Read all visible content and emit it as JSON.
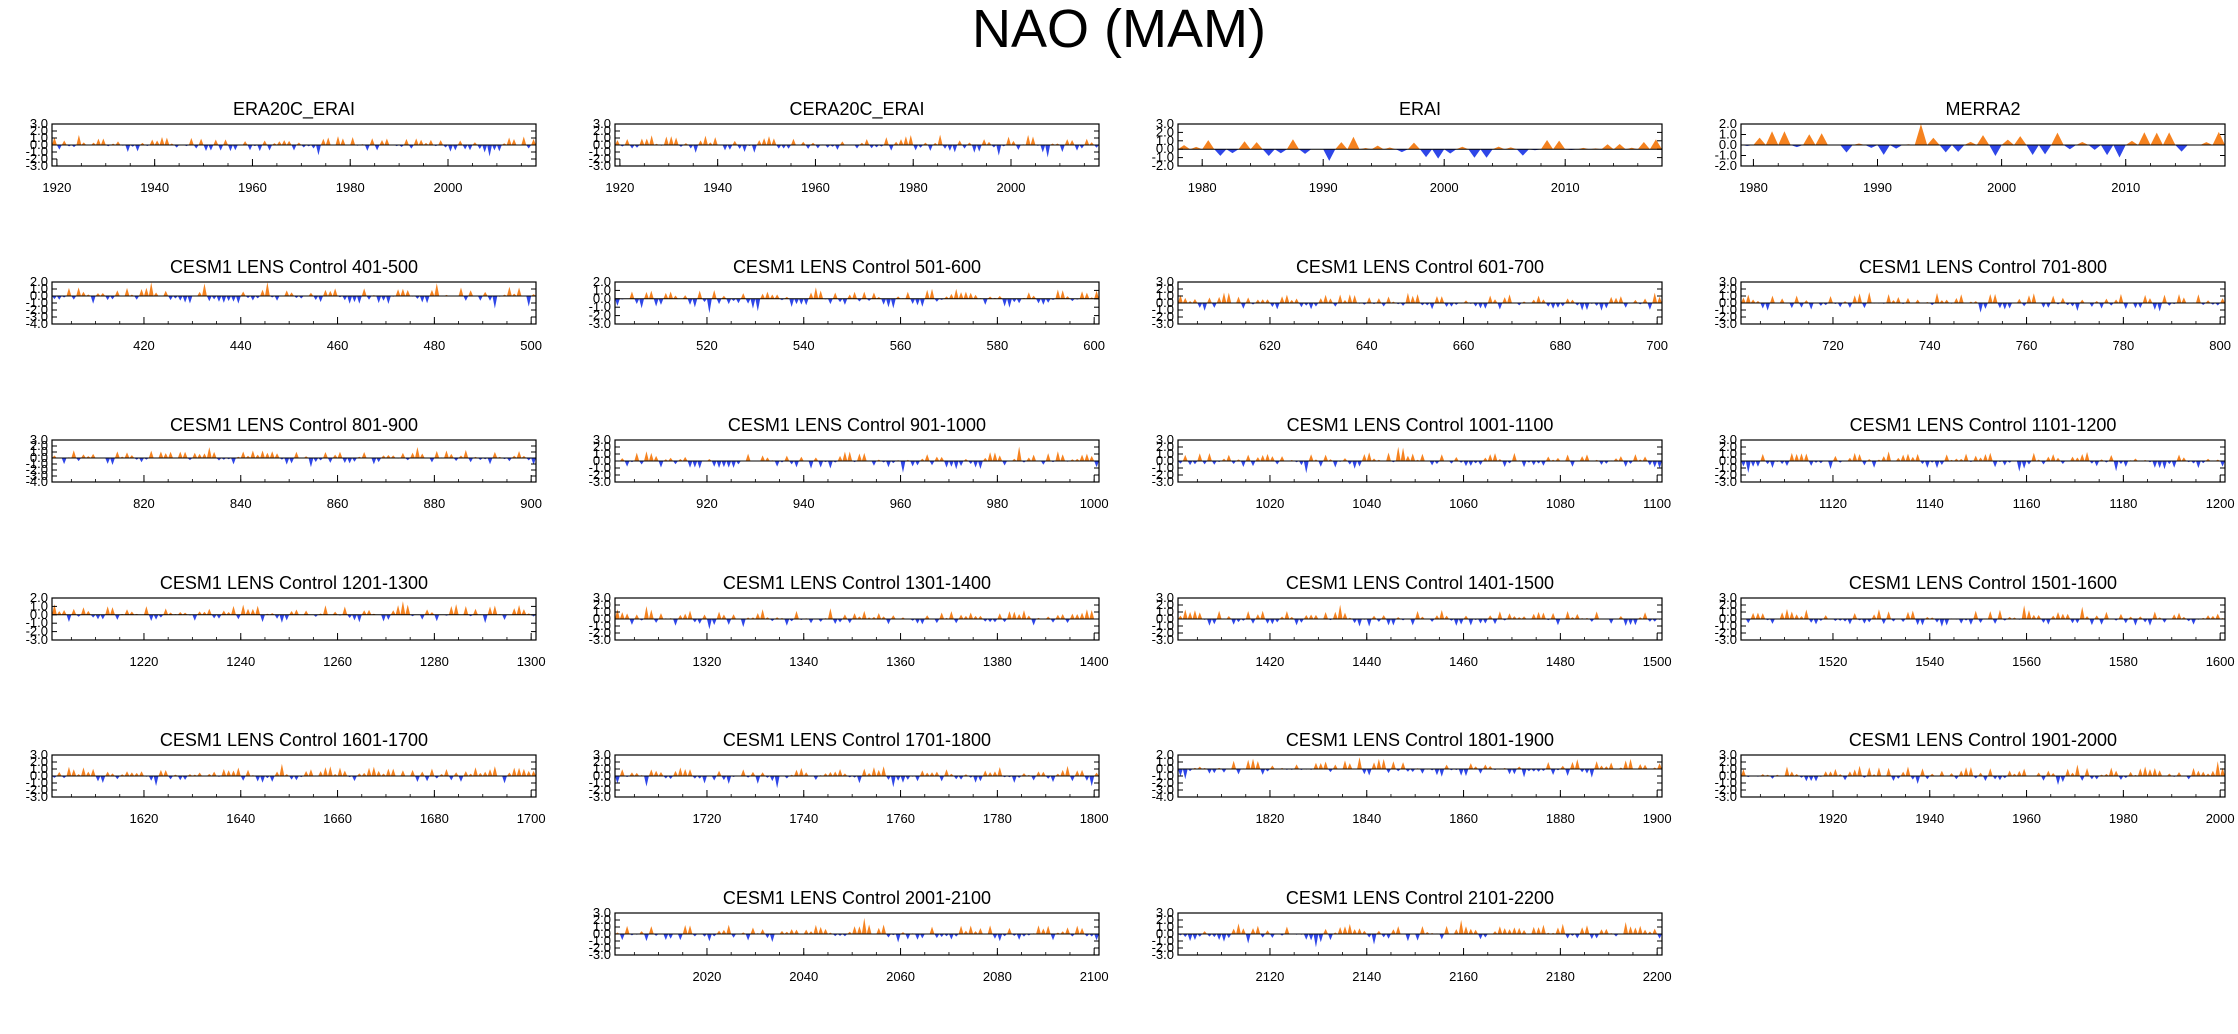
{
  "title": "NAO (MAM)",
  "colors": {
    "positive": "#f5821f",
    "negative": "#2e46e8",
    "frame": "#000000"
  },
  "chart_data": [
    {
      "type": "area",
      "title": "ERA20C_ERAI",
      "xlim": [
        1919,
        2018
      ],
      "ylim": [
        -3,
        3
      ],
      "yticks": [
        "3.0",
        "2.0",
        "1.0",
        "0.0",
        "-1.0",
        "-2.0",
        "-3.0"
      ],
      "xticks": [
        1920,
        1940,
        1960,
        1980,
        2000
      ],
      "seed": 11
    },
    {
      "type": "area",
      "title": "CERA20C_ERAI",
      "xlim": [
        1919,
        2018
      ],
      "ylim": [
        -3,
        3
      ],
      "yticks": [
        "3.0",
        "2.0",
        "1.0",
        "0.0",
        "-1.0",
        "-2.0",
        "-3.0"
      ],
      "xticks": [
        1920,
        1940,
        1960,
        1980,
        2000
      ],
      "seed": 12
    },
    {
      "type": "area",
      "title": "ERAI",
      "xlim": [
        1978,
        2018
      ],
      "ylim": [
        -2,
        3
      ],
      "yticks": [
        "3.0",
        "2.0",
        "1.0",
        "0.0",
        "-1.0",
        "-2.0"
      ],
      "xticks": [
        1980,
        1990,
        2000,
        2010
      ],
      "seed": 13
    },
    {
      "type": "area",
      "title": "MERRA2",
      "xlim": [
        1979,
        2018
      ],
      "ylim": [
        -2,
        2
      ],
      "yticks": [
        "2.0",
        "1.0",
        "0.0",
        "-1.0",
        "-2.0"
      ],
      "xticks": [
        1980,
        1990,
        2000,
        2010
      ],
      "seed": 14
    },
    {
      "type": "area",
      "title": "CESM1 LENS Control 401-500",
      "xlim": [
        401,
        501
      ],
      "ylim": [
        -4,
        2
      ],
      "yticks": [
        "2.0",
        "1.0",
        "0.0",
        "-1.0",
        "-2.0",
        "-3.0",
        "-4.0"
      ],
      "xticks": [
        420,
        440,
        460,
        480,
        500
      ],
      "seed": 21
    },
    {
      "type": "area",
      "title": "CESM1 LENS Control 501-600",
      "xlim": [
        501,
        601
      ],
      "ylim": [
        -3,
        2
      ],
      "yticks": [
        "2.0",
        "1.0",
        "0.0",
        "-1.0",
        "-2.0",
        "-3.0"
      ],
      "xticks": [
        520,
        540,
        560,
        580,
        600
      ],
      "seed": 22
    },
    {
      "type": "area",
      "title": "CESM1 LENS Control 601-700",
      "xlim": [
        601,
        701
      ],
      "ylim": [
        -3,
        3
      ],
      "yticks": [
        "3.0",
        "2.0",
        "1.0",
        "0.0",
        "-1.0",
        "-2.0",
        "-3.0"
      ],
      "xticks": [
        620,
        640,
        660,
        680,
        700
      ],
      "seed": 23
    },
    {
      "type": "area",
      "title": "CESM1 LENS Control 701-800",
      "xlim": [
        701,
        801
      ],
      "ylim": [
        -3,
        3
      ],
      "yticks": [
        "3.0",
        "2.0",
        "1.0",
        "0.0",
        "-1.0",
        "-2.0",
        "-3.0"
      ],
      "xticks": [
        720,
        740,
        760,
        780,
        800
      ],
      "seed": 24
    },
    {
      "type": "area",
      "title": "CESM1 LENS Control 801-900",
      "xlim": [
        801,
        901
      ],
      "ylim": [
        -4,
        3
      ],
      "yticks": [
        "3.0",
        "2.0",
        "1.0",
        "0.0",
        "-1.0",
        "-2.0",
        "-3.0",
        "-4.0"
      ],
      "xticks": [
        820,
        840,
        860,
        880,
        900
      ],
      "seed": 31
    },
    {
      "type": "area",
      "title": "CESM1 LENS Control 901-1000",
      "xlim": [
        901,
        1001
      ],
      "ylim": [
        -3,
        3
      ],
      "yticks": [
        "3.0",
        "2.0",
        "1.0",
        "0.0",
        "-1.0",
        "-2.0",
        "-3.0"
      ],
      "xticks": [
        920,
        940,
        960,
        980,
        1000
      ],
      "seed": 32
    },
    {
      "type": "area",
      "title": "CESM1 LENS Control 1001-1100",
      "xlim": [
        1001,
        1101
      ],
      "ylim": [
        -3,
        3
      ],
      "yticks": [
        "3.0",
        "2.0",
        "1.0",
        "0.0",
        "-1.0",
        "-2.0",
        "-3.0"
      ],
      "xticks": [
        1020,
        1040,
        1060,
        1080,
        1100
      ],
      "seed": 33
    },
    {
      "type": "area",
      "title": "CESM1 LENS Control 1101-1200",
      "xlim": [
        1101,
        1201
      ],
      "ylim": [
        -3,
        3
      ],
      "yticks": [
        "3.0",
        "2.0",
        "1.0",
        "0.0",
        "-1.0",
        "-2.0",
        "-3.0"
      ],
      "xticks": [
        1120,
        1140,
        1160,
        1180,
        1200
      ],
      "seed": 34
    },
    {
      "type": "area",
      "title": "CESM1 LENS Control 1201-1300",
      "xlim": [
        1201,
        1301
      ],
      "ylim": [
        -3,
        2
      ],
      "yticks": [
        "2.0",
        "1.0",
        "0.0",
        "-1.0",
        "-2.0",
        "-3.0"
      ],
      "xticks": [
        1220,
        1240,
        1260,
        1280,
        1300
      ],
      "seed": 41
    },
    {
      "type": "area",
      "title": "CESM1 LENS Control 1301-1400",
      "xlim": [
        1301,
        1401
      ],
      "ylim": [
        -3,
        3
      ],
      "yticks": [
        "3.0",
        "2.0",
        "1.0",
        "0.0",
        "-1.0",
        "-2.0",
        "-3.0"
      ],
      "xticks": [
        1320,
        1340,
        1360,
        1380,
        1400
      ],
      "seed": 42
    },
    {
      "type": "area",
      "title": "CESM1 LENS Control 1401-1500",
      "xlim": [
        1401,
        1501
      ],
      "ylim": [
        -3,
        3
      ],
      "yticks": [
        "3.0",
        "2.0",
        "1.0",
        "0.0",
        "-1.0",
        "-2.0",
        "-3.0"
      ],
      "xticks": [
        1420,
        1440,
        1460,
        1480,
        1500
      ],
      "seed": 43
    },
    {
      "type": "area",
      "title": "CESM1 LENS Control 1501-1600",
      "xlim": [
        1501,
        1601
      ],
      "ylim": [
        -3,
        3
      ],
      "yticks": [
        "3.0",
        "2.0",
        "1.0",
        "0.0",
        "-1.0",
        "-2.0",
        "-3.0"
      ],
      "xticks": [
        1520,
        1540,
        1560,
        1580,
        1600
      ],
      "seed": 44
    },
    {
      "type": "area",
      "title": "CESM1 LENS Control 1601-1700",
      "xlim": [
        1601,
        1701
      ],
      "ylim": [
        -3,
        3
      ],
      "yticks": [
        "3.0",
        "2.0",
        "1.0",
        "0.0",
        "-1.0",
        "-2.0",
        "-3.0"
      ],
      "xticks": [
        1620,
        1640,
        1660,
        1680,
        1700
      ],
      "seed": 51
    },
    {
      "type": "area",
      "title": "CESM1 LENS Control 1701-1800",
      "xlim": [
        1701,
        1801
      ],
      "ylim": [
        -3,
        3
      ],
      "yticks": [
        "3.0",
        "2.0",
        "1.0",
        "0.0",
        "-1.0",
        "-2.0",
        "-3.0"
      ],
      "xticks": [
        1720,
        1740,
        1760,
        1780,
        1800
      ],
      "seed": 52
    },
    {
      "type": "area",
      "title": "CESM1 LENS Control 1801-1900",
      "xlim": [
        1801,
        1901
      ],
      "ylim": [
        -4,
        2
      ],
      "yticks": [
        "2.0",
        "1.0",
        "0.0",
        "-1.0",
        "-2.0",
        "-3.0",
        "-4.0"
      ],
      "xticks": [
        1820,
        1840,
        1860,
        1880,
        1900
      ],
      "seed": 53
    },
    {
      "type": "area",
      "title": "CESM1 LENS Control 1901-2000",
      "xlim": [
        1901,
        2001
      ],
      "ylim": [
        -3,
        3
      ],
      "yticks": [
        "3.0",
        "2.0",
        "1.0",
        "0.0",
        "-1.0",
        "-2.0",
        "-3.0"
      ],
      "xticks": [
        1920,
        1940,
        1960,
        1980,
        2000
      ],
      "seed": 54
    },
    {
      "type": "area",
      "title": "CESM1 LENS Control 2001-2100",
      "xlim": [
        2001,
        2101
      ],
      "ylim": [
        -3,
        3
      ],
      "yticks": [
        "3.0",
        "2.0",
        "1.0",
        "0.0",
        "-1.0",
        "-2.0",
        "-3.0"
      ],
      "xticks": [
        2020,
        2040,
        2060,
        2080,
        2100
      ],
      "seed": 62
    },
    {
      "type": "area",
      "title": "CESM1 LENS Control 2101-2200",
      "xlim": [
        2101,
        2201
      ],
      "ylim": [
        -3,
        3
      ],
      "yticks": [
        "3.0",
        "2.0",
        "1.0",
        "0.0",
        "-1.0",
        "-2.0",
        "-3.0"
      ],
      "xticks": [
        2120,
        2140,
        2160,
        2180,
        2200
      ],
      "seed": 63
    }
  ]
}
